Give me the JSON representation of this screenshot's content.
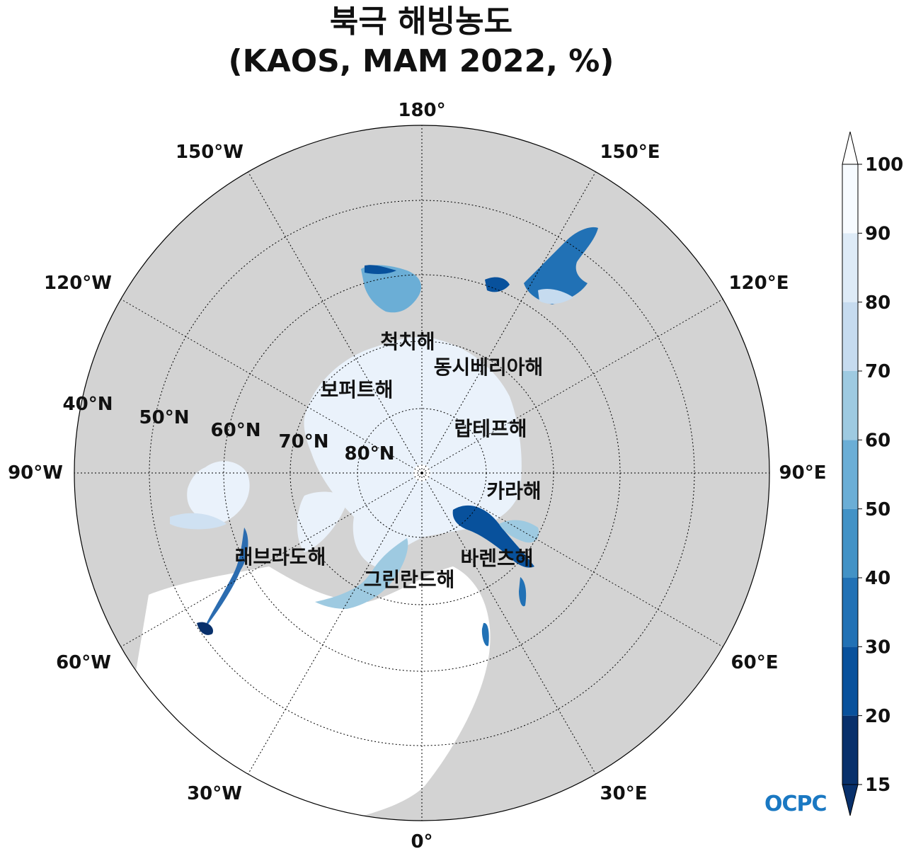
{
  "title": {
    "line1": "북극 해빙농도",
    "line2": "(KAOS, MAM 2022, %)"
  },
  "map": {
    "projection": "north-polar-stereographic",
    "longitude_labels": [
      {
        "lon": 180,
        "text": "180°"
      },
      {
        "lon": 150,
        "text": "150°E"
      },
      {
        "lon": 120,
        "text": "120°E"
      },
      {
        "lon": 90,
        "text": "90°E"
      },
      {
        "lon": 60,
        "text": "60°E"
      },
      {
        "lon": 30,
        "text": "30°E"
      },
      {
        "lon": 0,
        "text": "0°"
      },
      {
        "lon": -30,
        "text": "30°W"
      },
      {
        "lon": -60,
        "text": "60°W"
      },
      {
        "lon": -90,
        "text": "90°W"
      },
      {
        "lon": -120,
        "text": "120°W"
      },
      {
        "lon": -150,
        "text": "150°W"
      }
    ],
    "latitude_labels": [
      {
        "lat": 40,
        "text": "40°N"
      },
      {
        "lat": 50,
        "text": "50°N"
      },
      {
        "lat": 60,
        "text": "60°N"
      },
      {
        "lat": 70,
        "text": "70°N"
      },
      {
        "lat": 80,
        "text": "80°N"
      }
    ],
    "sea_labels": [
      {
        "text": "척치해"
      },
      {
        "text": "동시베리아해"
      },
      {
        "text": "보퍼트해"
      },
      {
        "text": "랍테프해"
      },
      {
        "text": "카라해"
      },
      {
        "text": "바렌츠해"
      },
      {
        "text": "래브라도해"
      },
      {
        "text": "그린란드해"
      }
    ],
    "colors": {
      "land": "#d3d3d3",
      "ocean": "#ffffff",
      "ice_high": "#eaf2fb",
      "ice_low": "#08306b"
    }
  },
  "colorbar": {
    "min": 15,
    "max": 100,
    "extend": "both",
    "tick_labels": [
      "100",
      "90",
      "80",
      "70",
      "60",
      "50",
      "40",
      "30",
      "20",
      "15"
    ],
    "bins": [
      {
        "from": 15,
        "to": 20,
        "color": "#08306b"
      },
      {
        "from": 20,
        "to": 30,
        "color": "#08519c"
      },
      {
        "from": 30,
        "to": 40,
        "color": "#2171b5"
      },
      {
        "from": 40,
        "to": 50,
        "color": "#4292c6"
      },
      {
        "from": 50,
        "to": 60,
        "color": "#6baed6"
      },
      {
        "from": 60,
        "to": 70,
        "color": "#9ecae1"
      },
      {
        "from": 70,
        "to": 80,
        "color": "#c6dbef"
      },
      {
        "from": 80,
        "to": 90,
        "color": "#deebf7"
      },
      {
        "from": 90,
        "to": 100,
        "color": "#f7fbff"
      }
    ]
  },
  "logo": {
    "text": "OCPC"
  }
}
